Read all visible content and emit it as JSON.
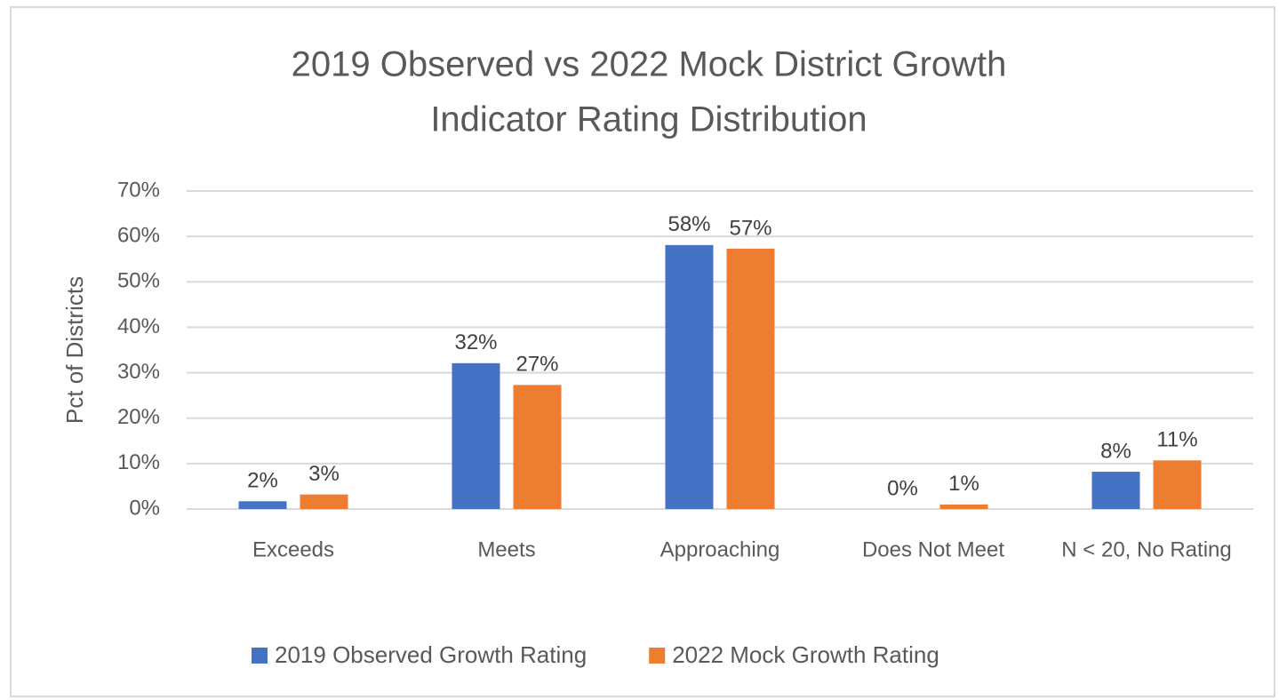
{
  "chart_data": {
    "type": "bar",
    "title": [
      "2019 Observed vs 2022 Mock District Growth",
      "Indicator Rating Distribution"
    ],
    "y_label": "Pct of Districts",
    "categories": [
      "Exceeds",
      "Meets",
      "Approaching",
      "Does Not Meet",
      "N < 20, No Rating"
    ],
    "series": [
      {
        "name": "2019 Observed Growth Rating",
        "color": "#4472c4",
        "values": [
          1.7,
          32.1,
          58.1,
          0,
          8.2
        ],
        "value_labels": [
          "2%",
          "32%",
          "58%",
          "0%",
          "8%"
        ]
      },
      {
        "name": "2022 Mock Growth Rating",
        "color": "#ed7d31",
        "values": [
          3.2,
          27.3,
          57.3,
          1,
          10.7
        ],
        "value_labels": [
          "3%",
          "27%",
          "57%",
          "1%",
          "11%"
        ]
      }
    ],
    "ylim": [
      0,
      70
    ],
    "yticks": [
      {
        "value": 0,
        "label": "0%"
      },
      {
        "value": 10,
        "label": "10%"
      },
      {
        "value": 20,
        "label": "20%"
      },
      {
        "value": 30,
        "label": "30%"
      },
      {
        "value": 40,
        "label": "40%"
      },
      {
        "value": 50,
        "label": "50%"
      },
      {
        "value": 60,
        "label": "60%"
      },
      {
        "value": 70,
        "label": "70%"
      }
    ],
    "grid": true,
    "legend": "bottom"
  }
}
